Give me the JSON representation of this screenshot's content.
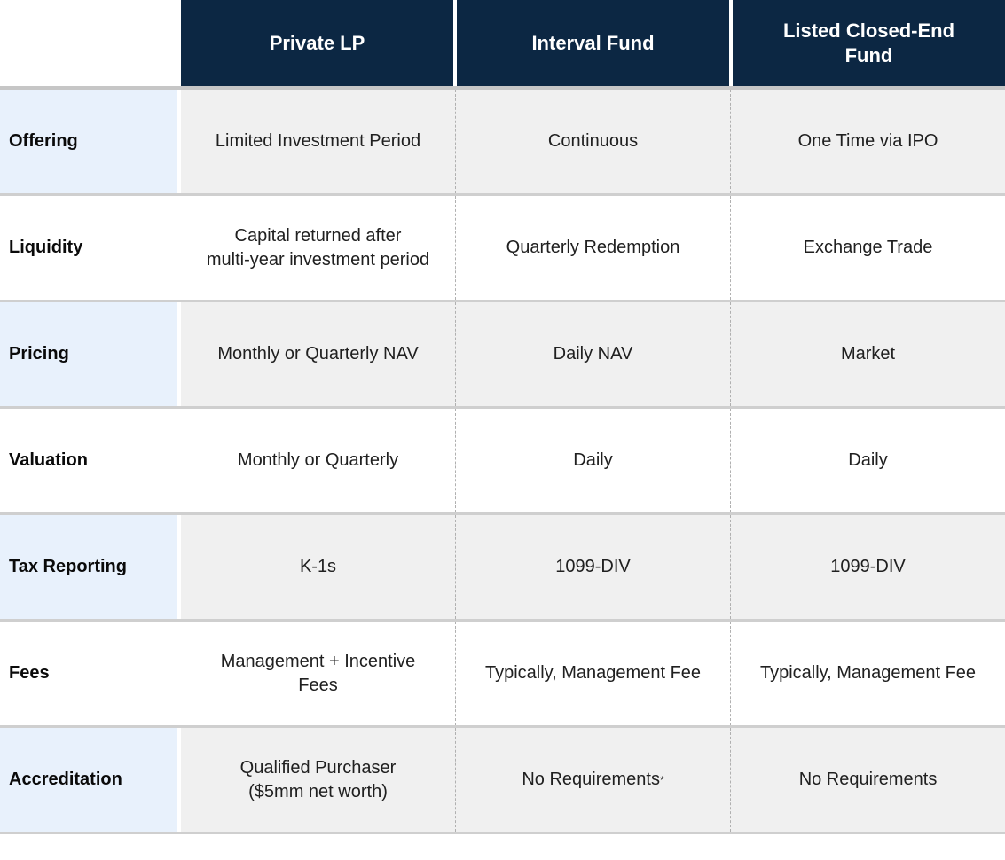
{
  "header": {
    "columns": [
      "Private LP",
      "Interval Fund",
      "Listed Closed-End\nFund"
    ]
  },
  "rows": [
    {
      "label": "Offering",
      "values": [
        "Limited Investment Period",
        "Continuous",
        "One Time via IPO"
      ]
    },
    {
      "label": "Liquidity",
      "values": [
        "Capital returned after\nmulti-year investment period",
        "Quarterly Redemption",
        "Exchange Trade"
      ]
    },
    {
      "label": "Pricing",
      "values": [
        "Monthly or Quarterly NAV",
        "Daily NAV",
        "Market"
      ]
    },
    {
      "label": "Valuation",
      "values": [
        "Monthly or Quarterly",
        "Daily",
        "Daily"
      ]
    },
    {
      "label": "Tax Reporting",
      "values": [
        "K-1s",
        "1099-DIV",
        "1099-DIV"
      ]
    },
    {
      "label": "Fees",
      "values": [
        "Management + Incentive\nFees",
        "Typically, Management Fee",
        "Typically, Management Fee"
      ]
    },
    {
      "label": "Accreditation",
      "values": [
        "Qualified Purchaser\n($5mm net worth)",
        "No Requirements",
        "No Requirements"
      ],
      "footnote_marker": "*"
    }
  ],
  "colors": {
    "header_bg": "#0c2743",
    "header_text": "#ffffff",
    "label_bg_shaded": "#e8f1fc",
    "row_bg_shaded": "#f0f0f0",
    "row_bg_plain": "#ffffff",
    "separator_line": "#c9c9c9",
    "dashed_divider": "#b0b0b0",
    "body_text": "#202020"
  }
}
